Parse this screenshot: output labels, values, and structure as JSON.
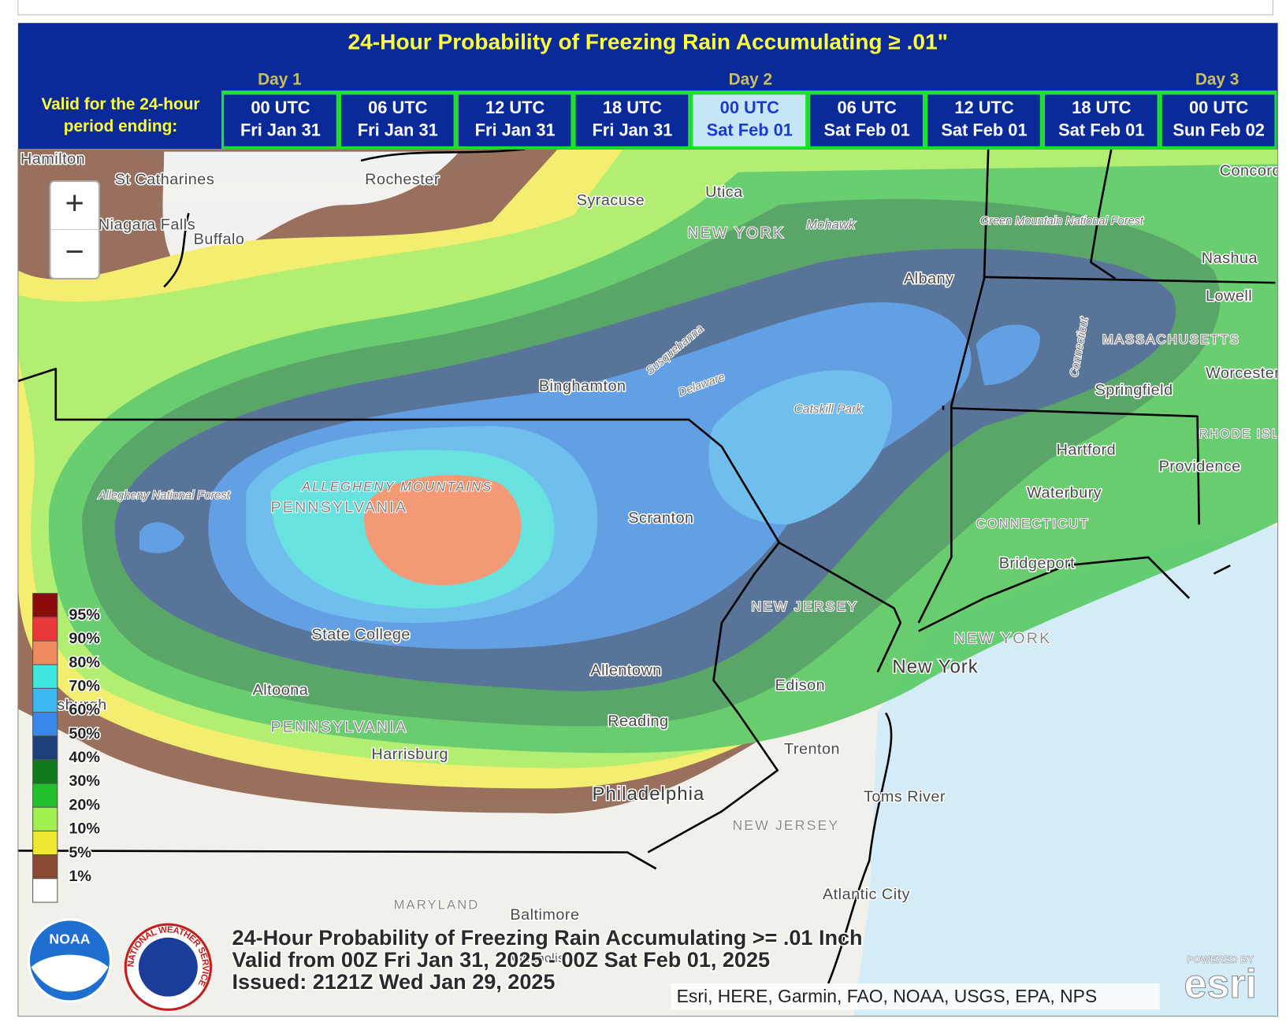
{
  "header": {
    "title": "24-Hour Probability of Freezing Rain Accumulating ≥ .01\"",
    "valid_label": [
      "Valid for the 24-hour",
      "period ending:"
    ],
    "days": [
      "Day 1",
      "Day 2",
      "Day 3"
    ],
    "tabs": [
      {
        "time": "00 UTC",
        "date": "Fri Jan 31"
      },
      {
        "time": "06 UTC",
        "date": "Fri Jan 31"
      },
      {
        "time": "12 UTC",
        "date": "Fri Jan 31"
      },
      {
        "time": "18 UTC",
        "date": "Fri Jan 31"
      },
      {
        "time": "00 UTC",
        "date": "Sat Feb 01"
      },
      {
        "time": "06 UTC",
        "date": "Sat Feb 01"
      },
      {
        "time": "12 UTC",
        "date": "Sat Feb 01"
      },
      {
        "time": "18 UTC",
        "date": "Sat Feb 01"
      },
      {
        "time": "00 UTC",
        "date": "Sun Feb 02"
      }
    ],
    "selected_tab": 4
  },
  "controls": {
    "zoom_in": "+",
    "zoom_out": "−"
  },
  "legend": [
    {
      "label": "95%",
      "color": "#8b0a0a"
    },
    {
      "label": "90%",
      "color": "#e8383a"
    },
    {
      "label": "80%",
      "color": "#f08a60"
    },
    {
      "label": "70%",
      "color": "#40e6e0"
    },
    {
      "label": "60%",
      "color": "#3cb8f0"
    },
    {
      "label": "50%",
      "color": "#3a88ea"
    },
    {
      "label": "40%",
      "color": "#1b3f78"
    },
    {
      "label": "30%",
      "color": "#107a1c"
    },
    {
      "label": "20%",
      "color": "#22c02c"
    },
    {
      "label": "10%",
      "color": "#a0f050"
    },
    {
      "label": "5%",
      "color": "#f0e830"
    },
    {
      "label": "1%",
      "color": "#8a4a32"
    }
  ],
  "map": {
    "labels": [
      "Hamilton",
      "St Catharines",
      "Niagara Falls",
      "Buffalo",
      "Rochester",
      "Syracuse",
      "Utica",
      "NEW YORK",
      "Mohawk",
      "Albany",
      "Green Mountain National Forest",
      "Concord",
      "Nashua",
      "Lowell",
      "MASSACHUSETTS",
      "Worcester",
      "Springfield",
      "Hartford",
      "RHODE ISLAND",
      "Providence",
      "Waterbury",
      "CONNECTICUT",
      "Bridgeport",
      "Connecticut",
      "Binghamton",
      "Susquehanna",
      "Delaware",
      "Catskill Park",
      "Allegheny National Forest",
      "ALLEGHENY MOUNTAINS",
      "PENNSYLVANIA",
      "Scranton",
      "NEW JERSEY",
      "State College",
      "Allentown",
      "Altoona",
      "Pittsburgh",
      "Edison",
      "NEW YORK",
      "New York",
      "PENNSYLVANIA",
      "Reading",
      "Trenton",
      "Harrisburg",
      "Philadelphia",
      "Toms River",
      "NEW JERSEY",
      "Atlantic City",
      "MARYLAND",
      "Baltimore",
      "Annapolis"
    ]
  },
  "caption": [
    "24-Hour Probability of Freezing Rain Accumulating >= .01 Inch",
    "Valid from 00Z Fri Jan 31, 2025 - 00Z Sat Feb 01, 2025",
    "Issued: 2121Z Wed Jan 29, 2025"
  ],
  "logos": {
    "noaa": "NOAA",
    "nws": "NATIONAL WEATHER SERVICE",
    "esri_top": "POWERED BY",
    "esri": "esri"
  },
  "attribution": "Esri, HERE, Garmin, FAO, NOAA, USGS, EPA, NPS"
}
